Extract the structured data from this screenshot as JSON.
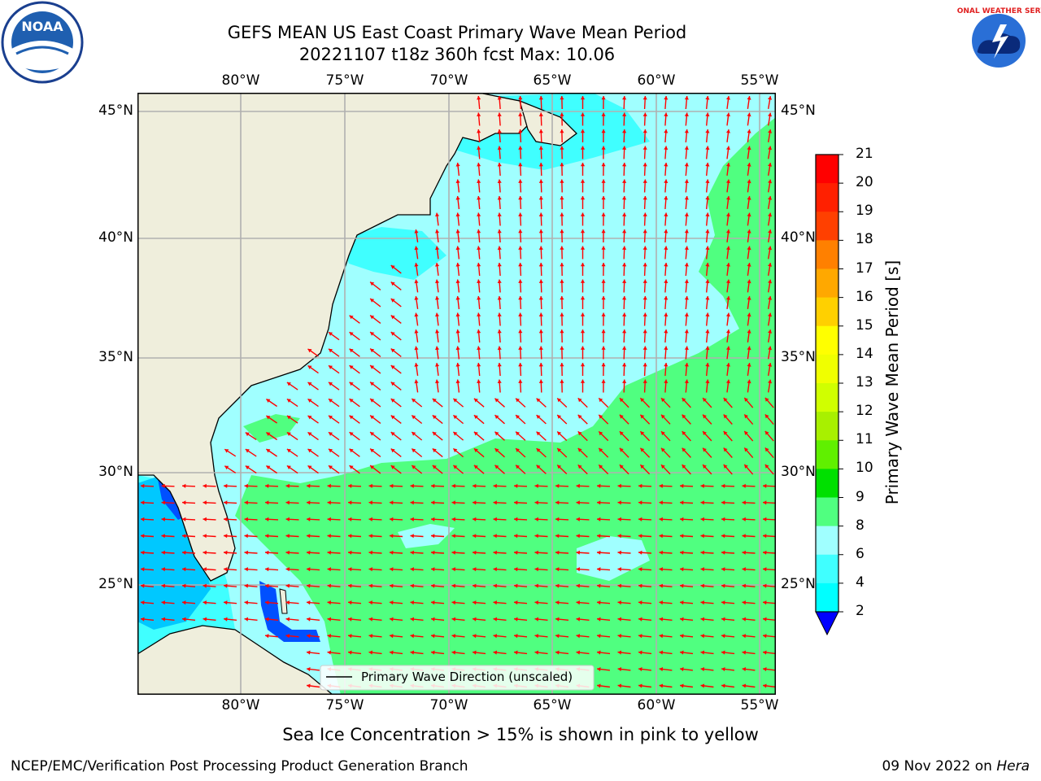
{
  "title_line1": "GEFS MEAN US East Coast Primary Wave Mean Period",
  "title_line2": "20221107 t18z 360h fcst   Max: 10.06",
  "lon_ticks": [
    "80°W",
    "75°W",
    "70°W",
    "65°W",
    "60°W",
    "55°W"
  ],
  "lat_ticks": [
    "45°N",
    "40°N",
    "35°N",
    "30°N",
    "25°N"
  ],
  "colorbar": {
    "label": "Primary Wave Mean Period [s]",
    "ticks": [
      "2",
      "4",
      "6",
      "8",
      "9",
      "10",
      "11",
      "12",
      "13",
      "14",
      "15",
      "16",
      "17",
      "18",
      "19",
      "20",
      "21"
    ],
    "colors": [
      "#0050ff",
      "#00c8ff",
      "#00ffff",
      "#40ffff",
      "#a0ffff",
      "#50ff80",
      "#00e000",
      "#60f000",
      "#a8f000",
      "#d0ff00",
      "#f0ff00",
      "#ffff00",
      "#ffd000",
      "#ffa800",
      "#ff8000",
      "#ff4000",
      "#ff2000",
      "#ff0000"
    ],
    "extend_color": "#0000ff"
  },
  "legend": {
    "label": "Primary Wave Direction (unscaled)"
  },
  "subtitle": "Sea Ice Concentration > 15% is shown in pink to yellow",
  "footer_left": "NCEP/EMC/Verification Post Processing Product Generation Branch",
  "footer_right_date": "09 Nov 2022 on ",
  "footer_right_host": "Hera",
  "logos": {
    "left": "NOAA",
    "right": "NATIONAL WEATHER SERVICE"
  },
  "colors": {
    "land": "#efeedc",
    "arrow": "#ff0000",
    "grid": "#b0b0b0"
  }
}
